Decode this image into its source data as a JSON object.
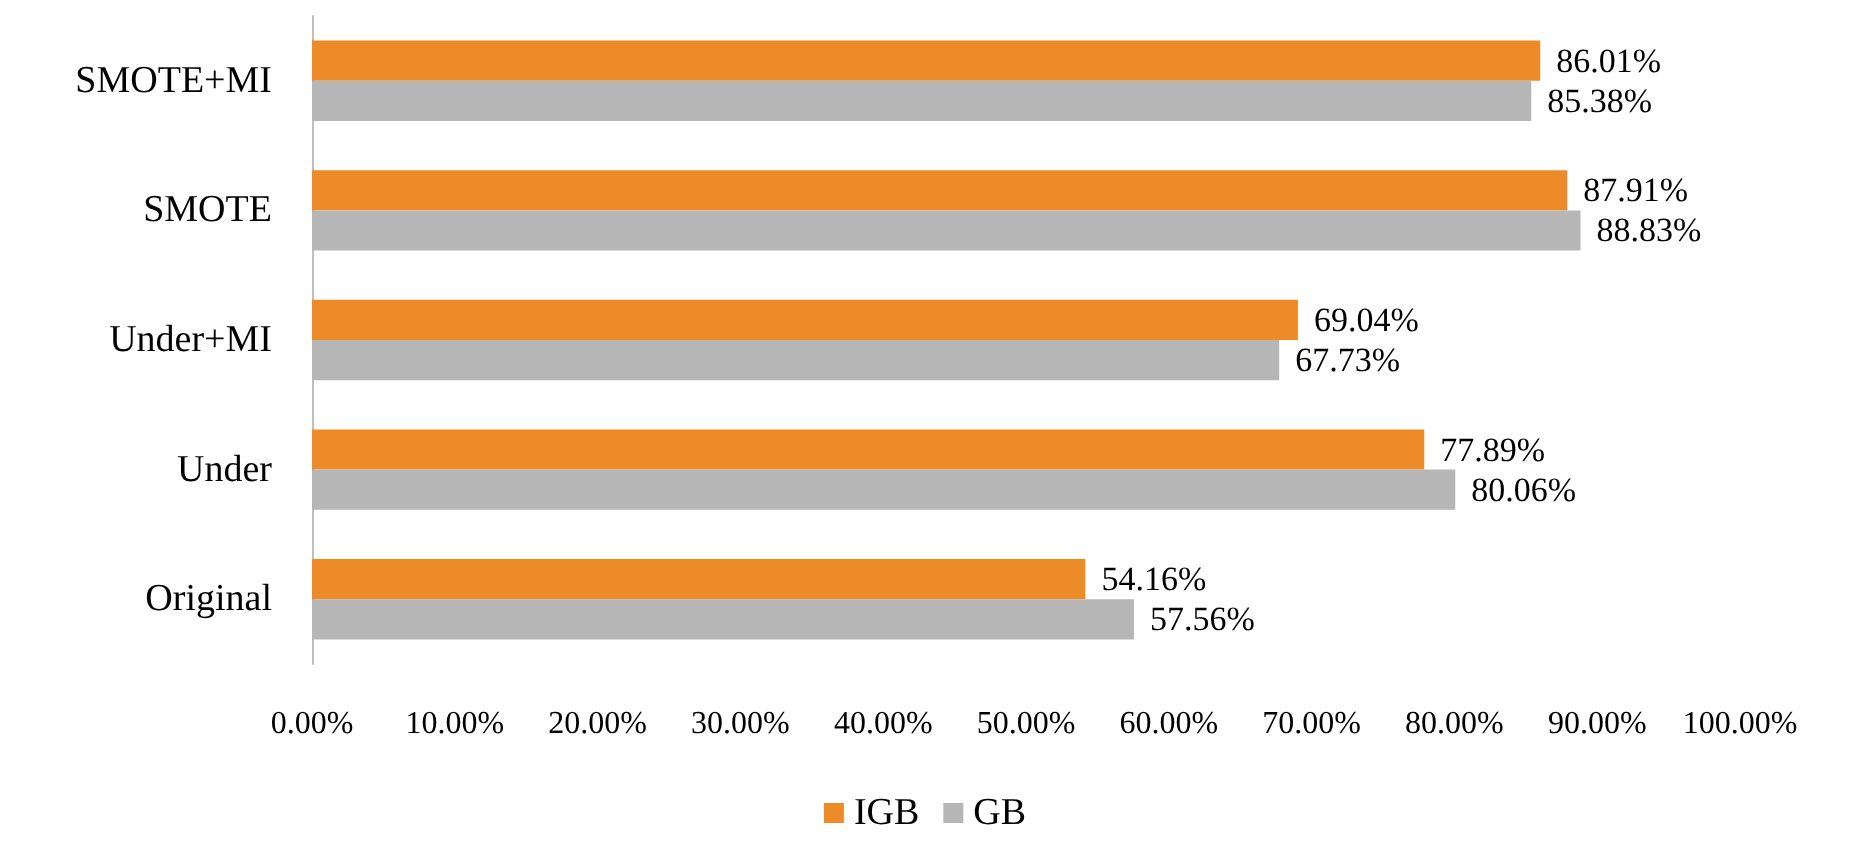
{
  "chart_data": {
    "type": "bar",
    "orientation": "horizontal",
    "categories": [
      "SMOTE+MI",
      "SMOTE",
      "Under+MI",
      "Under",
      "Original"
    ],
    "series": [
      {
        "name": "IGB",
        "color": "#ed8b28",
        "values": [
          86.01,
          87.91,
          69.04,
          77.89,
          54.16
        ],
        "value_labels": [
          "86.01%",
          "87.91%",
          "69.04%",
          "77.89%",
          "54.16%"
        ]
      },
      {
        "name": "GB",
        "color": "#b6b6b6",
        "values": [
          85.38,
          88.83,
          67.73,
          80.06,
          57.56
        ],
        "value_labels": [
          "85.38%",
          "88.83%",
          "67.73%",
          "80.06%",
          "57.56%"
        ]
      }
    ],
    "xlim": [
      0,
      100
    ],
    "xticks": [
      {
        "value": 0,
        "label": "0.00%"
      },
      {
        "value": 10,
        "label": "10.00%"
      },
      {
        "value": 20,
        "label": "20.00%"
      },
      {
        "value": 30,
        "label": "30.00%"
      },
      {
        "value": 40,
        "label": "40.00%"
      },
      {
        "value": 50,
        "label": "50.00%"
      },
      {
        "value": 60,
        "label": "60.00%"
      },
      {
        "value": 70,
        "label": "70.00%"
      },
      {
        "value": 80,
        "label": "80.00%"
      },
      {
        "value": 90,
        "label": "90.00%"
      },
      {
        "value": 100,
        "label": "100.00%"
      }
    ],
    "grid": false,
    "legend": "bottom"
  }
}
